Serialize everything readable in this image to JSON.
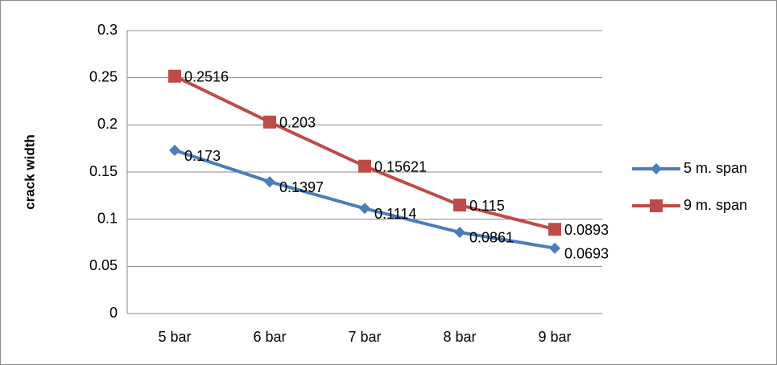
{
  "chart_data": {
    "type": "line",
    "y_label": "crack width",
    "categories": [
      "5 bar",
      "6 bar",
      "7 bar",
      "8 bar",
      "9 bar"
    ],
    "series": [
      {
        "name": "5 m. span",
        "color": "#4a7ebb",
        "marker": "diamond",
        "values": [
          0.173,
          0.1397,
          0.1114,
          0.0861,
          0.0693
        ]
      },
      {
        "name": "9 m. span",
        "color": "#be4b48",
        "marker": "square",
        "values": [
          0.2516,
          0.203,
          0.15621,
          0.115,
          0.0893
        ]
      }
    ],
    "ylim": [
      0,
      0.3
    ],
    "yticks": [
      0,
      0.05,
      0.1,
      0.15,
      0.2,
      0.25,
      0.3
    ],
    "grid": true,
    "legend": "right"
  }
}
